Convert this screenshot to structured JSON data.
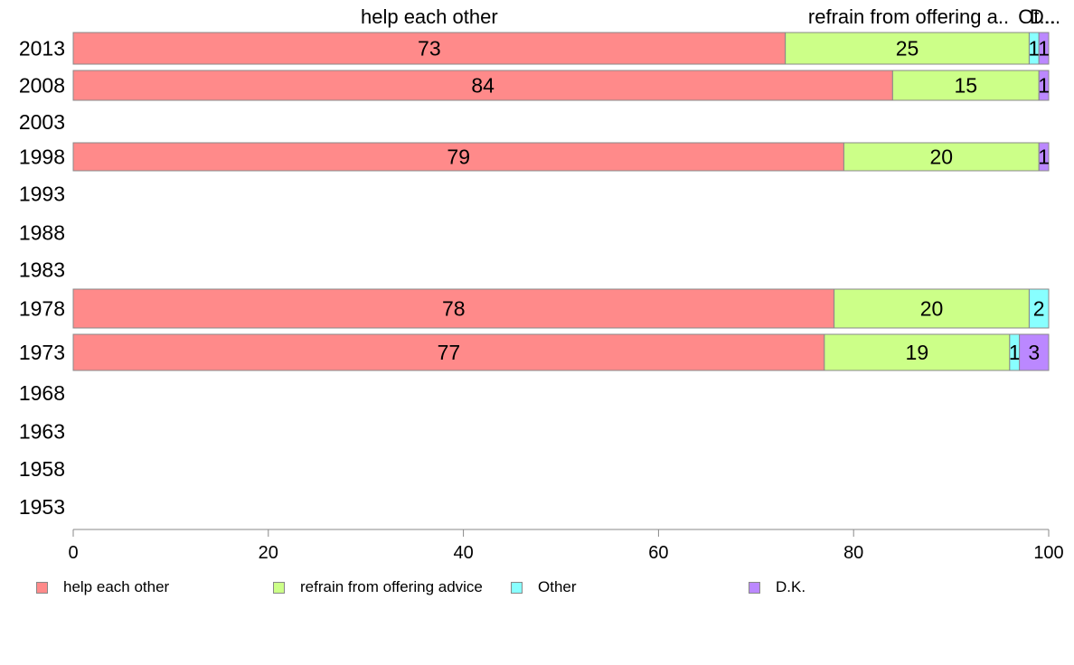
{
  "chart_data": {
    "type": "bar",
    "orientation": "horizontal",
    "stacked": true,
    "categories": [
      "2013",
      "2008",
      "2003",
      "1998",
      "1993",
      "1988",
      "1983",
      "1978",
      "1973",
      "1968",
      "1963",
      "1958",
      "1953"
    ],
    "series": [
      {
        "name": "help each other",
        "color": "#ff8a8a",
        "values": [
          73,
          84,
          null,
          79,
          null,
          null,
          null,
          78,
          77,
          null,
          null,
          null,
          null
        ]
      },
      {
        "name": "refrain from offering advice",
        "color": "#ccff88",
        "values": [
          25,
          15,
          null,
          20,
          null,
          null,
          null,
          20,
          19,
          null,
          null,
          null,
          null
        ]
      },
      {
        "name": "Other",
        "color": "#88ffff",
        "values": [
          1,
          0,
          null,
          0,
          null,
          null,
          null,
          2,
          1,
          null,
          null,
          null,
          null
        ]
      },
      {
        "name": "D.K.",
        "color": "#bb88ff",
        "values": [
          1,
          1,
          null,
          1,
          null,
          null,
          null,
          0,
          3,
          null,
          null,
          null,
          null
        ]
      }
    ],
    "top_labels": [
      "help each other",
      "refrain from offering a..",
      "Ot...",
      "D..."
    ],
    "xlim": [
      0,
      100
    ],
    "x_ticks": [
      "0",
      "20",
      "40",
      "60",
      "80",
      "100"
    ],
    "grid": false,
    "legend_position": "bottom"
  }
}
